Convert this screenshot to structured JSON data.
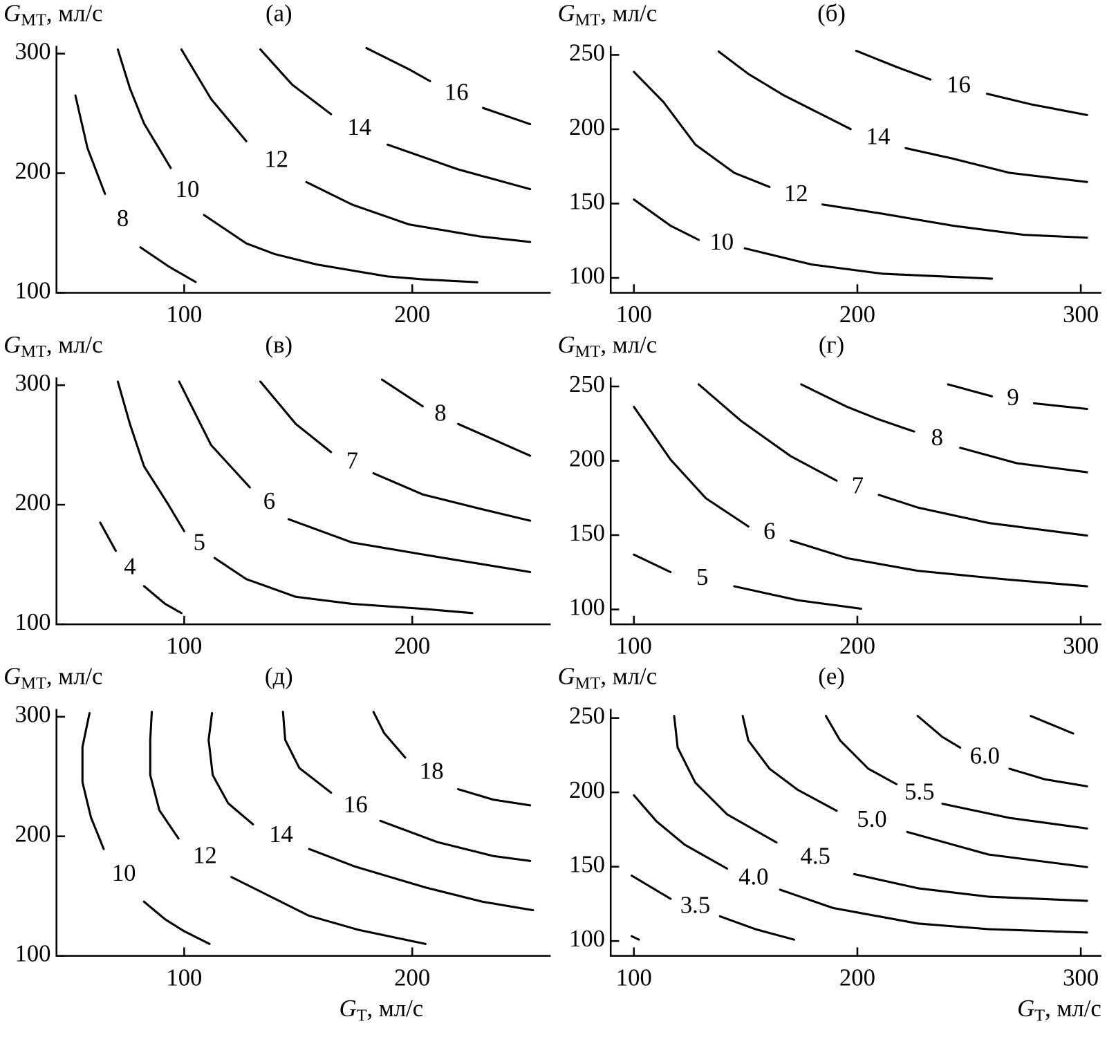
{
  "chart_data": [
    {
      "type": "contour",
      "title": "(а)",
      "color": "#000000",
      "ylabel": {
        "symbol": "G",
        "subscript": "МТ",
        "text": ", мл/с"
      },
      "xlim": [
        44.0,
        260.7
      ],
      "ylim": [
        100,
        306.5
      ],
      "xticks": [
        100,
        200
      ],
      "yticks": [
        100,
        200,
        300
      ],
      "series": [
        {
          "name": "8",
          "x": [
            52.3,
            57.6,
            65.3,
            null,
            80.8,
            93.2,
            105.0
          ],
          "y": [
            265,
            221,
            182.6,
            null,
            138,
            122,
            109
          ]
        },
        {
          "name": "10",
          "x": [
            70.9,
            76.2,
            82.4,
            94.1,
            null,
            108.7,
            127.2,
            139.6,
            158.2,
            189.2,
            204.6,
            228.5
          ],
          "y": [
            303.5,
            271,
            241.6,
            204.4,
            null,
            165,
            141.3,
            132.4,
            123.6,
            113.6,
            111.2,
            108.8
          ]
        },
        {
          "name": "12",
          "x": [
            98.8,
            111.8,
            127.2,
            null,
            153.6,
            173.7,
            198.5,
            229.4,
            251.7
          ],
          "y": [
            303.5,
            262,
            226.8,
            null,
            192.6,
            173.7,
            157.2,
            147.2,
            142.5
          ]
        },
        {
          "name": "14",
          "x": [
            133.4,
            147.4,
            164.4,
            null,
            189.2,
            220.1,
            251.7
          ],
          "y": [
            303.5,
            274,
            249.3,
            null,
            223.9,
            203.2,
            186.7
          ]
        },
        {
          "name": "16",
          "x": [
            179.9,
            198.5,
            207.8,
            null,
            231,
            251.7
          ],
          "y": [
            304.7,
            287,
            277,
            null,
            254.6,
            241
          ]
        }
      ]
    },
    {
      "type": "contour",
      "title": "(б)",
      "color": "#000000",
      "ylabel": {
        "symbol": "G",
        "subscript": "МТ",
        "text": ", мл/с"
      },
      "xlim": [
        89.6,
        309.2
      ],
      "ylim": [
        90,
        256.1
      ],
      "xticks": [
        100,
        200,
        300
      ],
      "yticks": [
        100,
        150,
        200,
        250
      ],
      "series": [
        {
          "name": "10",
          "x": [
            100,
            116.4,
            129,
            null,
            149.6,
            179.6,
            211.2,
            260.2
          ],
          "y": [
            152.7,
            135.1,
            125.6,
            null,
            119.9,
            109,
            102.8,
            99.5
          ]
        },
        {
          "name": "12",
          "x": [
            100,
            113.3,
            127.5,
            144.9,
            160.7,
            null,
            184.4,
            211.2,
            242.8,
            274.4,
            302.8
          ],
          "y": [
            238.6,
            218.2,
            189.7,
            170.7,
            161.2,
            null,
            149.4,
            143.2,
            135.1,
            129,
            127
          ]
        },
        {
          "name": "14",
          "x": [
            137.9,
            151.2,
            167,
            197,
            null,
            221.6,
            242.8,
            268.1,
            302.8
          ],
          "y": [
            252.3,
            237.2,
            222.9,
            200.1,
            null,
            187.3,
            180.2,
            170.7,
            164.5
          ]
        },
        {
          "name": "16",
          "x": [
            199.5,
            217.5,
            232.7,
            null,
            258,
            277.6,
            302.8
          ],
          "y": [
            252.8,
            241.9,
            233.4,
            null,
            223.9,
            216.8,
            209.6
          ]
        }
      ]
    },
    {
      "type": "contour",
      "title": "(в)",
      "color": "#000000",
      "ylabel": {
        "symbol": "G",
        "subscript": "МТ",
        "text": ", мл/с"
      },
      "xlim": [
        44.0,
        260.7
      ],
      "ylim": [
        100,
        306.5
      ],
      "xticks": [
        100,
        200
      ],
      "yticks": [
        100,
        200,
        300
      ],
      "series": [
        {
          "name": "4",
          "x": [
            63.2,
            70,
            null,
            82.4,
            91.6,
            98.8
          ],
          "y": [
            185,
            161.4,
            null,
            131.9,
            117.1,
            109.4
          ]
        },
        {
          "name": "5",
          "x": [
            70.9,
            76.2,
            82.4,
            93.2,
            100,
            null,
            113.3,
            127.2,
            148.9,
            173.7,
            204.6,
            226.3
          ],
          "y": [
            303,
            267.6,
            232.2,
            199.7,
            177.9,
            null,
            155.5,
            137.8,
            123,
            117.1,
            113,
            109.4
          ]
        },
        {
          "name": "6",
          "x": [
            97.8,
            111.8,
            128.8,
            null,
            145.8,
            173.7,
            204.6,
            251.7
          ],
          "y": [
            303,
            249.9,
            214.5,
            null,
            187.9,
            168.4,
            158.4,
            143.7
          ]
        },
        {
          "name": "7",
          "x": [
            133.4,
            148.9,
            164.4,
            null,
            183,
            204.6,
            229.4,
            251.7
          ],
          "y": [
            303,
            267.6,
            244,
            null,
            226.3,
            208.6,
            196.8,
            186.7
          ]
        },
        {
          "name": "8",
          "x": [
            186.7,
            204.6,
            null,
            220.1,
            251.7
          ],
          "y": [
            304.7,
            282.3,
            null,
            267.6,
            241
          ]
        }
      ]
    },
    {
      "type": "contour",
      "title": "(г)",
      "color": "#000000",
      "ylabel": {
        "symbol": "G",
        "subscript": "МТ",
        "text": ", мл/с"
      },
      "xlim": [
        89.6,
        309.2
      ],
      "ylim": [
        90,
        256.1
      ],
      "xticks": [
        100,
        200,
        300
      ],
      "yticks": [
        100,
        150,
        200,
        250
      ],
      "series": [
        {
          "name": "5",
          "x": [
            100,
            116.4,
            null,
            144.9,
            173.4,
            201.7
          ],
          "y": [
            136.9,
            125.1,
            null,
            115.6,
            106.2,
            100.5
          ]
        },
        {
          "name": "6",
          "x": [
            100,
            116.4,
            132.2,
            151.2,
            null,
            170.1,
            195.4,
            227,
            264.9,
            302.8
          ],
          "y": [
            236.3,
            200.8,
            174.8,
            155.8,
            null,
            146.4,
            134.5,
            126,
            120.4,
            115.6
          ]
        },
        {
          "name": "7",
          "x": [
            129,
            148,
            170.1,
            190.7,
            null,
            209.6,
            227,
            258.6,
            302.8
          ],
          "y": [
            251.4,
            226.8,
            203.2,
            186.6,
            null,
            177.1,
            168.6,
            158.2,
            149.7
          ]
        },
        {
          "name": "8",
          "x": [
            174.9,
            195.4,
            209.6,
            225.4,
            null,
            246,
            271.3,
            302.8
          ],
          "y": [
            251.4,
            236.3,
            227.8,
            219.7,
            null,
            208.8,
            198.4,
            192.3
          ]
        },
        {
          "name": "9",
          "x": [
            240.6,
            260.2,
            null,
            279.1,
            302.8
          ],
          "y": [
            251.4,
            243.4,
            null,
            238.7,
            234.9
          ]
        }
      ]
    },
    {
      "type": "contour",
      "title": "(д)",
      "color": "#000000",
      "ylabel": {
        "symbol": "G",
        "subscript": "МТ",
        "text": ", мл/с"
      },
      "xlabel": {
        "symbol": "G",
        "subscript": "Т",
        "text": ", мл/с"
      },
      "xlim": [
        44.0,
        260.7
      ],
      "ylim": [
        100,
        306.5
      ],
      "xticks": [
        100,
        200
      ],
      "yticks": [
        100,
        200,
        300
      ],
      "series": [
        {
          "name": "10",
          "x": [
            58.5,
            55.4,
            55.4,
            59.1,
            64.7,
            null,
            82.4,
            91.6,
            100,
            111.1
          ],
          "y": [
            303,
            274.7,
            245.3,
            215.9,
            189.4,
            null,
            145.3,
            130.6,
            120.6,
            110
          ]
        },
        {
          "name": "12",
          "x": [
            85.8,
            85.1,
            85.1,
            89.1,
            97.5,
            null,
            120.7,
            136.2,
            154.8,
            176.4,
            205.8
          ],
          "y": [
            304.1,
            280.6,
            251.2,
            221.8,
            198.2,
            null,
            165.9,
            151.2,
            133.5,
            121.8,
            110
          ]
        },
        {
          "name": "14",
          "x": [
            112.2,
            110.7,
            112.5,
            119.3,
            130.2,
            null,
            154.8,
            174.9,
            206,
            230.7,
            253
          ],
          "y": [
            303,
            280.6,
            251.2,
            227.6,
            210,
            null,
            189.4,
            174.7,
            157.1,
            145.3,
            138.2
          ]
        },
        {
          "name": "16",
          "x": [
            143.3,
            144.3,
            150.5,
            164.4,
            null,
            186,
            210.8,
            235.6,
            251.7
          ],
          "y": [
            304.1,
            280.6,
            257.1,
            236.5,
            null,
            212.9,
            195.3,
            183.5,
            179.4
          ]
        },
        {
          "name": "18",
          "x": [
            183,
            187.6,
            196.9,
            null,
            220.1,
            235.6,
            251.7
          ],
          "y": [
            304.1,
            286.5,
            265.9,
            null,
            239.4,
            230.6,
            225.9
          ]
        }
      ]
    },
    {
      "type": "contour",
      "title": "(е)",
      "color": "#000000",
      "ylabel": {
        "symbol": "G",
        "subscript": "МТ",
        "text": ", мл/с"
      },
      "xlabel": {
        "symbol": "G",
        "subscript": "Т",
        "text": ", мл/с"
      },
      "xlim": [
        89.6,
        309.2
      ],
      "ylim": [
        90,
        256.1
      ],
      "xticks": [
        100,
        200,
        300
      ],
      "yticks": [
        100,
        150,
        200,
        250
      ],
      "series": [
        {
          "name": null,
          "x": [
            99,
            102.2
          ],
          "y": [
            103.3,
            100.9
          ]
        },
        {
          "name": "3.5",
          "x": [
            99,
            116.4,
            null,
            138.5,
            154.3,
            171.7
          ],
          "y": [
            144,
            128.4,
            null,
            116.6,
            108,
            100.9
          ]
        },
        {
          "name": "4.0",
          "x": [
            100,
            110.1,
            122.7,
            141.7,
            null,
            165.4,
            189.1,
            227,
            258.6,
            302.8
          ],
          "y": [
            198,
            180.5,
            164.8,
            148.7,
            null,
            134.5,
            122.2,
            111.8,
            108,
            105.7
          ]
        },
        {
          "name": "4.5",
          "x": [
            118,
            119.6,
            127.5,
            141.7,
            163.8,
            null,
            198.6,
            227,
            258.6,
            302.8
          ],
          "y": [
            251.4,
            230.1,
            206.5,
            185.2,
            166.3,
            null,
            145,
            135.5,
            129.8,
            127
          ]
        },
        {
          "name": "5.0",
          "x": [
            148.7,
            151.2,
            160.7,
            173.3,
            190.7,
            null,
            222.3,
            258.6,
            302.8
          ],
          "y": [
            251.4,
            234.9,
            215.9,
            201.7,
            187.6,
            null,
            173.4,
            158.2,
            149.7
          ]
        },
        {
          "name": "5.5",
          "x": [
            185.9,
            192.3,
            204.9,
            217.5,
            null,
            238.1,
            268.1,
            302.8
          ],
          "y": [
            251.4,
            234.9,
            215.9,
            205.5,
            null,
            192.3,
            182.8,
            175.7
          ]
        },
        {
          "name": "6.0",
          "x": [
            227,
            238.1,
            246,
            null,
            268.1,
            283.9,
            302.8
          ],
          "y": [
            251.4,
            237.2,
            230.1,
            null,
            215.9,
            208.8,
            204.1
          ]
        },
        {
          "name": null,
          "x": [
            277.6,
            296.6
          ],
          "y": [
            251.4,
            239.6
          ]
        }
      ]
    }
  ]
}
